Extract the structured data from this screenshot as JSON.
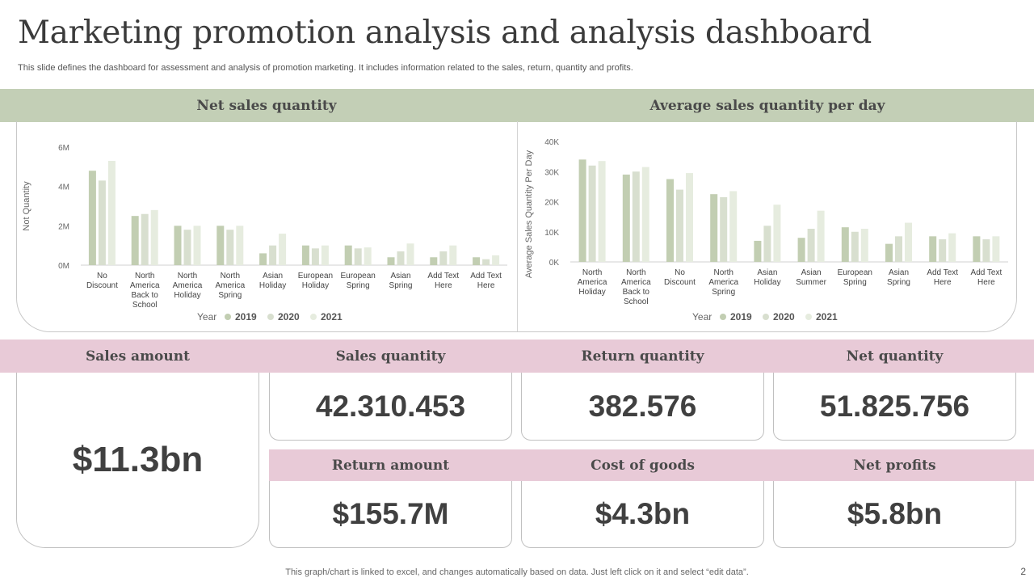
{
  "header": {
    "title": "Marketing promotion analysis and analysis dashboard",
    "subtitle": "This slide defines the dashboard for assessment and analysis of promotion marketing. It includes information related to the sales, return, quantity and profits."
  },
  "sections": {
    "net_sales": "Net sales quantity",
    "avg_sales": "Average sales quantity per day"
  },
  "colors": {
    "series": [
      "#c2ceb2",
      "#d8dfcf",
      "#e6ecdf"
    ],
    "header_green": "#c3cfb6",
    "header_pink": "#e8cad7"
  },
  "chart_data": [
    {
      "type": "bar",
      "title": "Net sales quantity",
      "ylabel": "Not Quantity",
      "xlabel": "",
      "ylim": [
        0,
        6000000
      ],
      "yticks": [
        0,
        2000000,
        4000000,
        6000000
      ],
      "ytick_labels": [
        "0M",
        "2M",
        "4M",
        "6M"
      ],
      "legend_title": "Year",
      "categories": [
        "No Discount",
        "North America Back to School",
        "North America Holiday",
        "North America Spring",
        "Asian Holiday",
        "European Holiday",
        "European Spring",
        "Asian Spring",
        "Add Text Here",
        "Add Text Here"
      ],
      "series": [
        {
          "name": "2019",
          "values": [
            4800000,
            2500000,
            2000000,
            2000000,
            600000,
            1000000,
            1000000,
            400000,
            400000,
            400000
          ]
        },
        {
          "name": "2020",
          "values": [
            4300000,
            2600000,
            1800000,
            1800000,
            1000000,
            850000,
            850000,
            700000,
            700000,
            300000
          ]
        },
        {
          "name": "2021",
          "values": [
            5300000,
            2800000,
            2000000,
            2000000,
            1600000,
            1000000,
            900000,
            1100000,
            1000000,
            500000
          ]
        }
      ]
    },
    {
      "type": "bar",
      "title": "Average sales quantity per day",
      "ylabel": "Average  Sales Quantity Per Day",
      "xlabel": "",
      "ylim": [
        0,
        40000
      ],
      "yticks": [
        0,
        10000,
        20000,
        30000,
        40000
      ],
      "ytick_labels": [
        "0K",
        "10K",
        "20K",
        "30K",
        "40K"
      ],
      "legend_title": "Year",
      "categories": [
        "North America Holiday",
        "North America Back to School",
        "No Discount",
        "North America Spring",
        "Asian Holiday",
        "Asian Summer",
        "European Spring",
        "Asian Spring",
        "Add Text Here",
        "Add Text Here"
      ],
      "series": [
        {
          "name": "2019",
          "values": [
            34000,
            29000,
            27500,
            22500,
            7000,
            8000,
            11500,
            6000,
            8500,
            8500
          ]
        },
        {
          "name": "2020",
          "values": [
            32000,
            30000,
            24000,
            21500,
            12000,
            11000,
            10000,
            8500,
            7500,
            7500
          ]
        },
        {
          "name": "2021",
          "values": [
            33500,
            31500,
            29500,
            23500,
            19000,
            17000,
            11000,
            13000,
            9500,
            8500
          ]
        }
      ]
    }
  ],
  "metrics": {
    "sales_amount": {
      "label": "Sales amount",
      "value": "$11.3bn"
    },
    "sales_quantity": {
      "label": "Sales quantity",
      "value": "42.310.453"
    },
    "return_quantity": {
      "label": "Return quantity",
      "value": "382.576"
    },
    "net_quantity": {
      "label": "Net quantity",
      "value": "51.825.756"
    },
    "return_amount": {
      "label": "Return amount",
      "value": "$155.7M"
    },
    "cost_of_goods": {
      "label": "Cost of goods",
      "value": "$4.3bn"
    },
    "net_profits": {
      "label": "Net profits",
      "value": "$5.8bn"
    }
  },
  "footer": {
    "note": "This graph/chart is linked to excel,  and changes automatically based on data. Just left click on it and select “edit data”.",
    "page": "2"
  }
}
